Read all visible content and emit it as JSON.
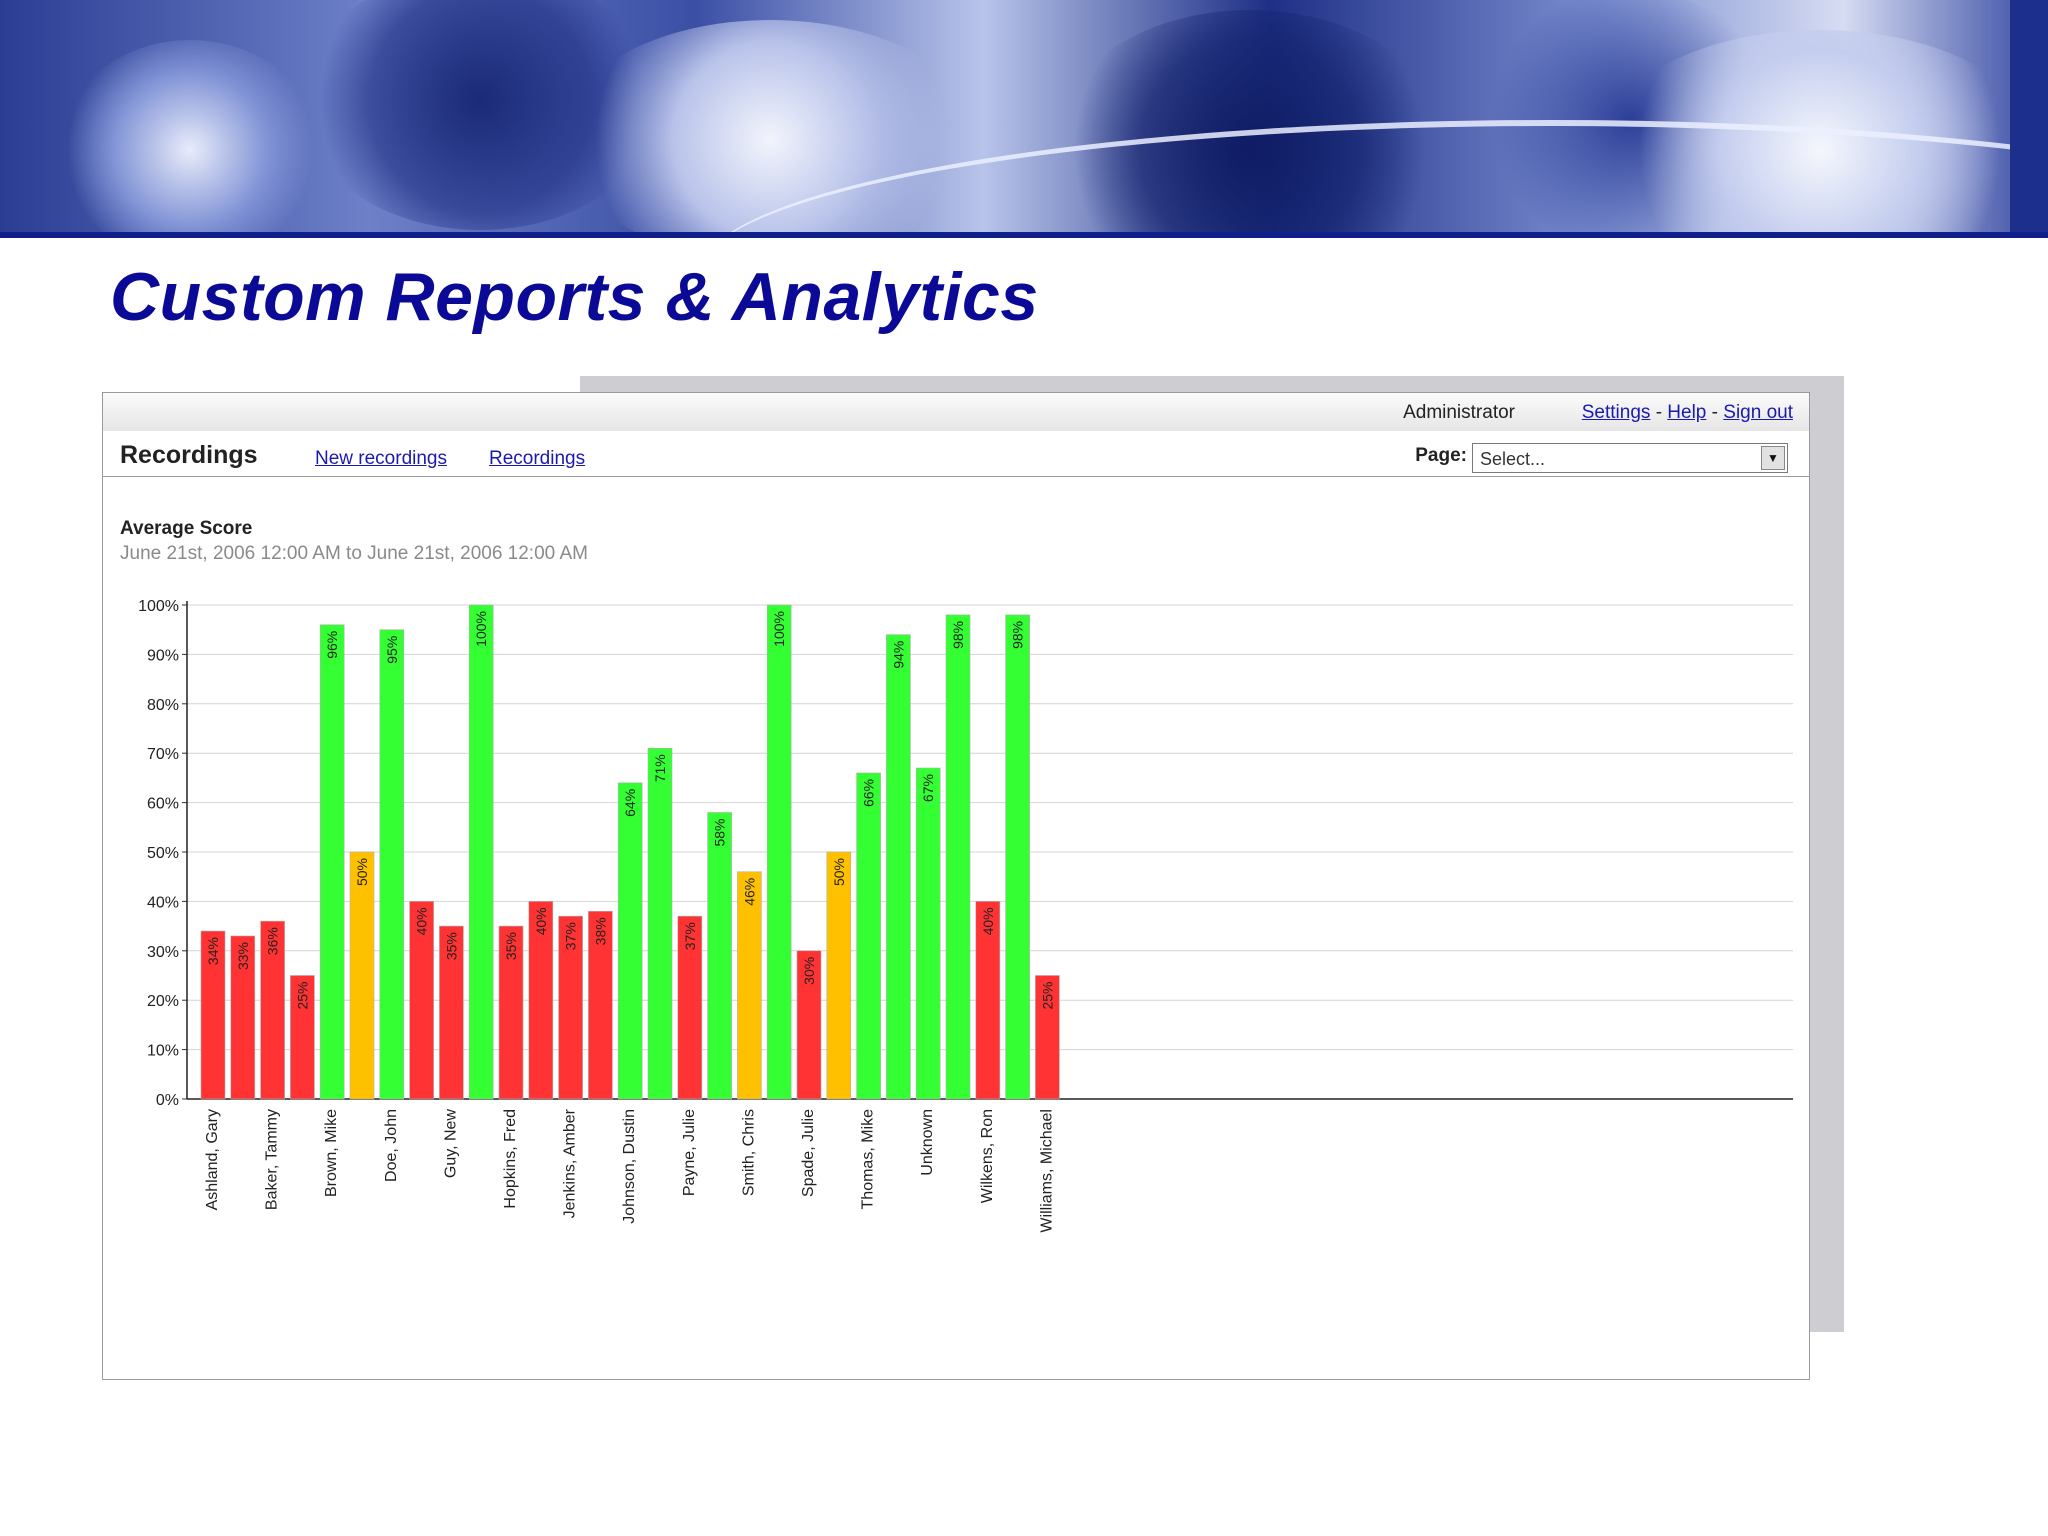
{
  "page": {
    "title": "Custom Reports & Analytics"
  },
  "header": {
    "user": "Administrator",
    "links": [
      "Settings",
      "Help",
      "Sign out"
    ],
    "separator": "-"
  },
  "nav": {
    "title": "Recordings",
    "links": [
      "New recordings",
      "Recordings"
    ],
    "page_label": "Page:",
    "page_select_value": "Select...",
    "dropdown_icon": "chevron-down-icon"
  },
  "colors": {
    "good": "#33ff33",
    "medium": "#ffc000",
    "poor": "#ff3333",
    "title": "#0a0a96",
    "link": "#1a1ab0"
  },
  "chart_data": {
    "type": "bar",
    "title": "Average Score",
    "subtitle": "June 21st, 2006 12:00 AM to June 21st, 2006 12:00 AM",
    "ylim": [
      0,
      100
    ],
    "yticks": [
      "0%",
      "10%",
      "20%",
      "30%",
      "40%",
      "50%",
      "60%",
      "70%",
      "80%",
      "90%",
      "100%"
    ],
    "grid": true,
    "values": [
      34,
      33,
      36,
      25,
      96,
      50,
      95,
      40,
      35,
      100,
      35,
      40,
      37,
      38,
      64,
      71,
      37,
      58,
      46,
      100,
      30,
      50,
      66,
      94,
      67,
      98,
      40,
      98,
      25
    ],
    "labels": [
      "34%",
      "33%",
      "36%",
      "25%",
      "96%",
      "50%",
      "95%",
      "40%",
      "35%",
      "100%",
      "35%",
      "40%",
      "37%",
      "38%",
      "64%",
      "71%",
      "37%",
      "58%",
      "46%",
      "100%",
      "30%",
      "50%",
      "66%",
      "94%",
      "67%",
      "98%",
      "40%",
      "98%",
      "25%"
    ],
    "colors": [
      "poor",
      "poor",
      "poor",
      "poor",
      "good",
      "medium",
      "good",
      "poor",
      "poor",
      "good",
      "poor",
      "poor",
      "poor",
      "poor",
      "good",
      "good",
      "poor",
      "good",
      "medium",
      "good",
      "poor",
      "medium",
      "good",
      "good",
      "good",
      "good",
      "poor",
      "good",
      "poor"
    ],
    "categories": [
      "Ashland, Gary",
      "Baker, Tammy",
      "Brown, Mike",
      "Doe, John",
      "Guy, New",
      "Hopkins, Fred",
      "Jenkins, Amber",
      "Johnson, Dustin",
      "Payne, Julie",
      "Smith, Chris",
      "Spade, Julie",
      "Thomas, Mike",
      "Unknown",
      "Wilkens, Ron",
      "Williams, Michael"
    ]
  }
}
